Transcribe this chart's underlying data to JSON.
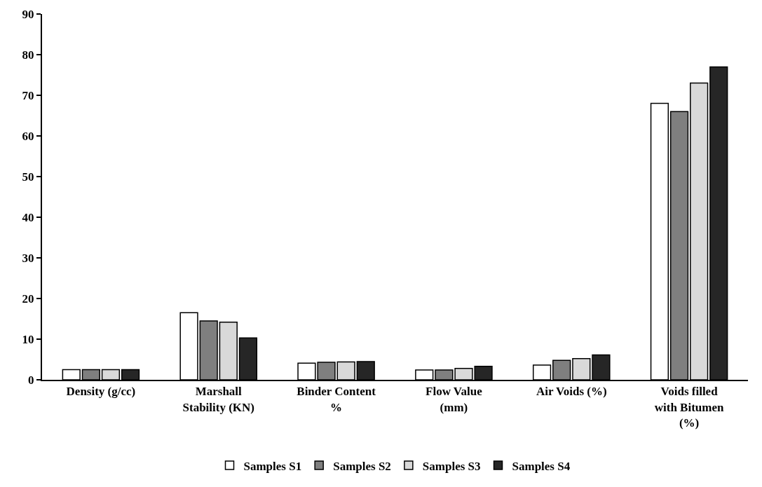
{
  "chart_data": {
    "type": "bar",
    "categories": [
      "Density (g/cc)",
      "Marshall Stability (KN)",
      "Binder Content %",
      "Flow Value (mm)",
      "Air Voids (%)",
      "Voids filled with Bitumen (%)"
    ],
    "series": [
      {
        "name": "Samples S1",
        "color": "#ffffff",
        "values": [
          2.5,
          16.5,
          4.1,
          2.4,
          3.6,
          68
        ]
      },
      {
        "name": "Samples S2",
        "color": "#7f7f7f",
        "values": [
          2.5,
          14.5,
          4.3,
          2.4,
          4.8,
          66
        ]
      },
      {
        "name": "Samples S3",
        "color": "#d9d9d9",
        "values": [
          2.5,
          14.2,
          4.4,
          2.8,
          5.2,
          73
        ]
      },
      {
        "name": "Samples S4",
        "color": "#262626",
        "values": [
          2.5,
          10.3,
          4.5,
          3.3,
          6.1,
          77
        ]
      }
    ],
    "ylim": [
      0,
      90
    ],
    "yticks": [
      0,
      10,
      20,
      30,
      40,
      50,
      60,
      70,
      80,
      90
    ],
    "legend": "bottom"
  }
}
